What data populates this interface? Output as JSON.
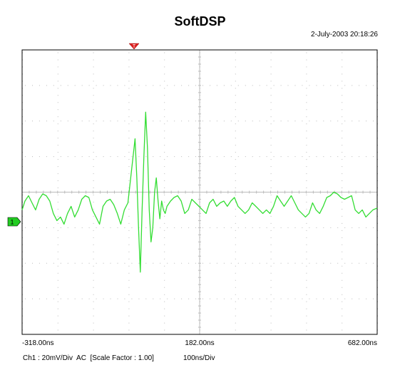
{
  "title": "SoftDSP",
  "timestamp": "2-July-2003 20:18:26",
  "channel_marker": "1",
  "trigger_marker": "T",
  "footer": {
    "channel_info": "Ch1 : 20mV/Div  AC  [Scale Factor : 1.00]",
    "timebase": "100ns/Div"
  },
  "colors": {
    "trace": "#33dd33",
    "grid": "#bbbbbb",
    "trigger_marker": "#dd2222",
    "channel_marker": "#22cc22"
  },
  "chart_data": {
    "type": "line",
    "title": "SoftDSP",
    "xlabel": "",
    "ylabel": "",
    "x_tick_labels": [
      "-318.00ns",
      "182.00ns",
      "682.00ns"
    ],
    "xlim": [
      -318,
      682
    ],
    "ylim": [
      -80,
      80
    ],
    "grid": true,
    "divisions": {
      "x": 10,
      "y": 8
    },
    "series": [
      {
        "x": [
          -318,
          -310,
          -300,
          -290,
          -280,
          -270,
          -260,
          -250,
          -240,
          -230,
          -220,
          -210,
          -200,
          -190,
          -180,
          -170,
          -160,
          -150,
          -140,
          -130,
          -120,
          -110,
          -100,
          -90,
          -80,
          -70,
          -60,
          -50,
          -40,
          -30,
          -20,
          -10,
          0,
          5,
          10,
          15,
          20,
          25,
          30,
          35,
          40,
          45,
          50,
          55,
          60,
          65,
          70,
          75,
          80,
          85,
          90,
          100,
          110,
          120,
          130,
          140,
          150,
          160,
          170,
          180,
          190,
          200,
          210,
          220,
          230,
          240,
          250,
          260,
          270,
          280,
          290,
          300,
          310,
          320,
          330,
          340,
          350,
          360,
          370,
          380,
          390,
          400,
          410,
          420,
          430,
          440,
          450,
          460,
          470,
          480,
          490,
          500,
          510,
          520,
          530,
          540,
          550,
          560,
          570,
          580,
          590,
          600,
          610,
          620,
          630,
          640,
          650,
          660,
          670,
          682
        ],
        "y": [
          -10,
          -5,
          -2,
          -6,
          -10,
          -4,
          -1,
          -2,
          -5,
          -12,
          -16,
          -14,
          -18,
          -12,
          -8,
          -14,
          -10,
          -4,
          -2,
          -3,
          -10,
          -14,
          -18,
          -8,
          -5,
          -4,
          -7,
          -12,
          -18,
          -10,
          -6,
          12,
          30,
          8,
          -20,
          -45,
          -10,
          20,
          45,
          25,
          -10,
          -28,
          -20,
          0,
          8,
          -5,
          -15,
          -5,
          -10,
          -12,
          -8,
          -5,
          -3,
          -2,
          -5,
          -12,
          -10,
          -4,
          -6,
          -8,
          -10,
          -12,
          -6,
          -4,
          -8,
          -6,
          -5,
          -8,
          -5,
          -3,
          -8,
          -10,
          -12,
          -10,
          -6,
          -8,
          -10,
          -12,
          -10,
          -12,
          -8,
          -2,
          -5,
          -8,
          -5,
          -2,
          -6,
          -10,
          -12,
          -14,
          -12,
          -6,
          -10,
          -12,
          -8,
          -3,
          -2,
          0,
          -1,
          -3,
          -4,
          -3,
          -2,
          -10,
          -12,
          -10,
          -14,
          -12,
          -10,
          -9
        ]
      }
    ]
  }
}
